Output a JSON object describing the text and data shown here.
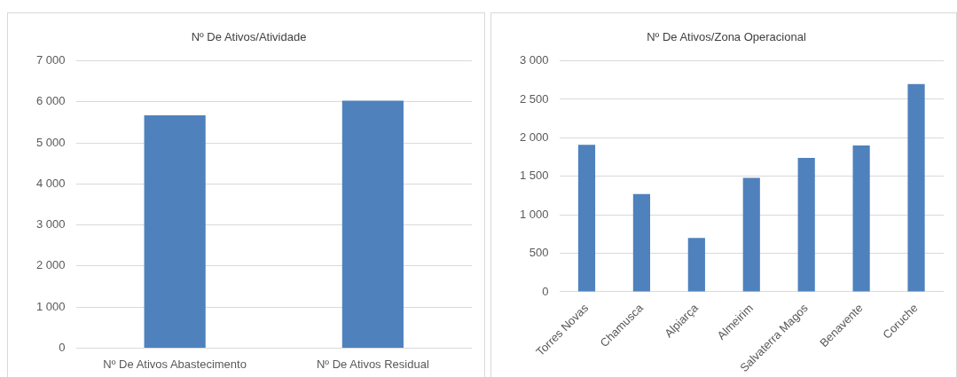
{
  "chart_data": [
    {
      "type": "bar",
      "title": "Nº De Ativos/Atividade",
      "categories": [
        "Nº De Ativos Abastecimento",
        "Nº De Ativos Residual"
      ],
      "values": [
        5670,
        6030
      ],
      "color": "#4f81bd",
      "ylim": [
        0,
        7000
      ],
      "yticks": [
        {
          "value": 0,
          "label": "0"
        },
        {
          "value": 1000,
          "label": "1 000"
        },
        {
          "value": 2000,
          "label": "2 000"
        },
        {
          "value": 3000,
          "label": "3 000"
        },
        {
          "value": 4000,
          "label": "4 000"
        },
        {
          "value": 5000,
          "label": "5 000"
        },
        {
          "value": 6000,
          "label": "6 000"
        },
        {
          "value": 7000,
          "label": "7 000"
        }
      ],
      "grid": "y"
    },
    {
      "type": "bar",
      "title": "Nº De Ativos/Zona Operacional",
      "categories": [
        "Torres Novas",
        "Chamusca",
        "Alpiarça",
        "Almeirim",
        "Salvaterra Magos",
        "Benavente",
        "Coruche"
      ],
      "values": [
        1910,
        1270,
        700,
        1480,
        1740,
        1900,
        2700
      ],
      "color": "#4f81bd",
      "ylim": [
        0,
        3000
      ],
      "yticks": [
        {
          "value": 0,
          "label": "0"
        },
        {
          "value": 500,
          "label": "500"
        },
        {
          "value": 1000,
          "label": "1 000"
        },
        {
          "value": 1500,
          "label": "1 500"
        },
        {
          "value": 2000,
          "label": "2 000"
        },
        {
          "value": 2500,
          "label": "2 500"
        },
        {
          "value": 3000,
          "label": "3 000"
        }
      ],
      "grid": "y"
    }
  ]
}
